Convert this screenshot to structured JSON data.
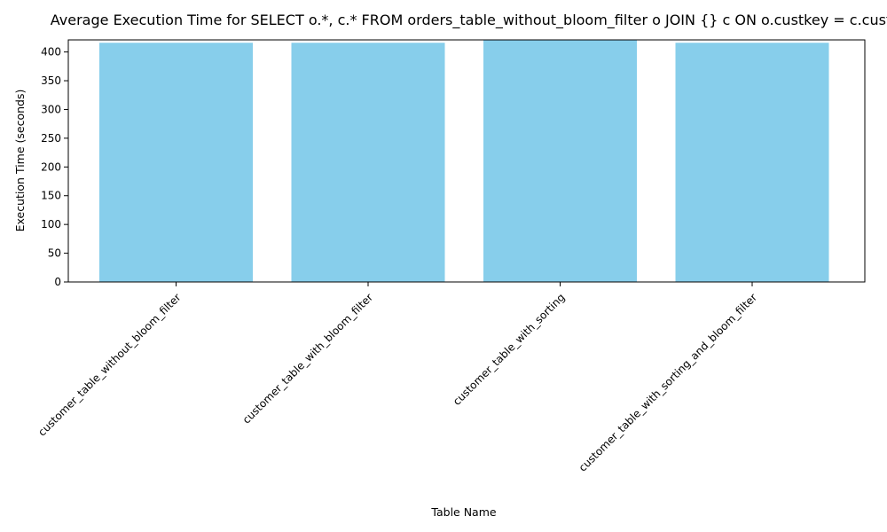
{
  "chart_data": {
    "type": "bar",
    "title": "Average Execution Time for SELECT o.*, c.* FROM orders_table_without_bloom_filter o JOIN {} c ON o.custkey = c.custkey",
    "xlabel": "Table Name",
    "ylabel": "Execution Time (seconds)",
    "categories": [
      "customer_table_without_bloom_filter",
      "customer_table_with_bloom_filter",
      "customer_table_with_sorting",
      "customer_table_with_sorting_and_bloom_filter"
    ],
    "values": [
      416,
      416,
      421,
      416
    ],
    "ylim": [
      0,
      421
    ],
    "yticks": [
      0,
      50,
      100,
      150,
      200,
      250,
      300,
      350,
      400
    ],
    "bar_color": "#87ceeb",
    "grid": false,
    "legend": "none"
  }
}
